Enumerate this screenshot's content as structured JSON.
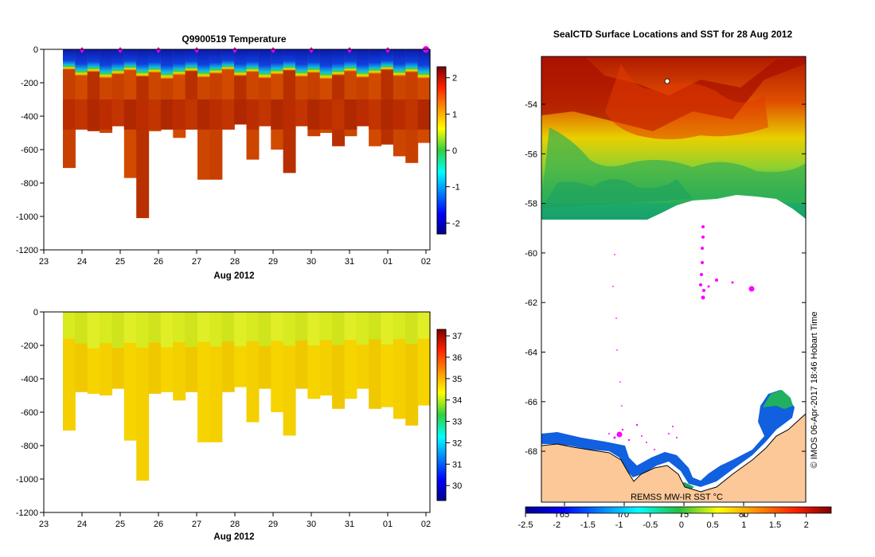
{
  "chart_data": [
    {
      "type": "heatmap",
      "title": "Q9900519  Temperature",
      "xlabel": "Aug 2012",
      "x_ticks": [
        "23",
        "24",
        "25",
        "26",
        "27",
        "28",
        "29",
        "30",
        "31",
        "01",
        "02"
      ],
      "y_ticks": [
        "0",
        "-200",
        "-400",
        "-600",
        "-800",
        "-1000",
        "-1200"
      ],
      "ylim": [
        -1200,
        0
      ],
      "colorbar_ticks": [
        "2",
        "1",
        "0",
        "-1",
        "-2"
      ],
      "colorbar_range": [
        -2.3,
        2.3
      ],
      "profile_max_depth_m": [
        710,
        480,
        490,
        500,
        460,
        770,
        1010,
        490,
        480,
        530,
        480,
        780,
        780,
        480,
        450,
        660,
        460,
        600,
        740,
        460,
        520,
        500,
        580,
        520,
        460,
        580,
        570,
        640,
        680,
        560
      ]
    },
    {
      "type": "heatmap",
      "title": "",
      "xlabel": "Aug 2012",
      "x_ticks": [
        "23",
        "24",
        "25",
        "26",
        "27",
        "28",
        "29",
        "30",
        "31",
        "01",
        "02"
      ],
      "y_ticks": [
        "0",
        "-200",
        "-400",
        "-600",
        "-800",
        "-1000",
        "-1200"
      ],
      "ylim": [
        -1200,
        0
      ],
      "colorbar_ticks": [
        "37",
        "36",
        "35",
        "34",
        "33",
        "32",
        "31",
        "30"
      ],
      "colorbar_range": [
        29.3,
        37.3
      ],
      "profile_max_depth_m": [
        710,
        480,
        490,
        500,
        460,
        770,
        1010,
        490,
        480,
        530,
        480,
        780,
        780,
        480,
        450,
        660,
        460,
        600,
        740,
        460,
        520,
        500,
        580,
        520,
        460,
        580,
        570,
        640,
        680,
        560
      ]
    },
    {
      "type": "heatmap",
      "title": "SealCTD Surface Locations and SST for 28 Aug 2012",
      "y_ticks": [
        "-54",
        "-56",
        "-58",
        "-60",
        "-62",
        "-64",
        "-66",
        "-68"
      ],
      "x_ticks": [
        "65",
        "70",
        "75",
        "80"
      ],
      "colorbar_ticks": [
        "-2.5",
        "-2",
        "-1.5",
        "-1",
        "-0.5",
        "0",
        "0.5",
        "1",
        "1.5",
        "2"
      ],
      "colorbar_range": [
        -2.5,
        2.4
      ],
      "source_label": "REMSS MW-IR SST °C",
      "credit": "© IMOS 06-Apr-2017 18:46 Hobart Time"
    }
  ]
}
